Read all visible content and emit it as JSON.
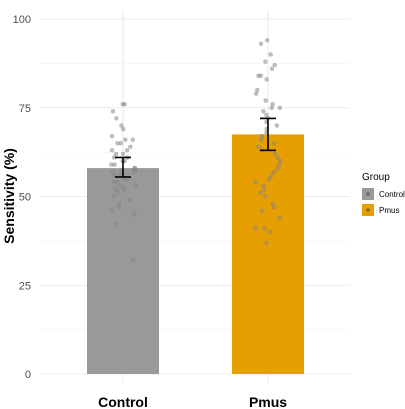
{
  "chart_data": {
    "type": "bar",
    "title": "",
    "xlabel": "",
    "ylabel": "Sensitivity (%)",
    "categories": [
      "Control",
      "Pmus"
    ],
    "values": [
      58,
      67.5
    ],
    "error_bars": [
      {
        "category": "Control",
        "low": 55.5,
        "high": 61
      },
      {
        "category": "Pmus",
        "low": 63,
        "high": 72
      }
    ],
    "ylim": [
      0,
      100
    ],
    "yticks": [
      0,
      25,
      50,
      75,
      100
    ],
    "grid": true,
    "legend": {
      "title": "Group",
      "placement": "right",
      "entries": [
        "Control",
        "Pmus"
      ]
    },
    "colors": {
      "Control": "#999999",
      "Pmus": "#E69F00"
    },
    "points": {
      "Control": [
        76,
        76,
        74,
        72,
        70,
        69,
        67,
        66,
        66,
        65,
        65,
        64,
        63,
        63,
        62,
        62,
        61,
        61,
        60,
        60,
        59,
        59,
        58,
        58,
        57,
        57,
        57,
        56,
        56,
        55,
        55,
        54,
        54,
        53,
        53,
        52,
        52,
        51,
        50,
        49,
        48,
        47,
        46,
        45,
        42,
        32
      ],
      "Pmus": [
        94,
        93,
        90,
        88,
        87,
        86,
        84,
        84,
        83,
        80,
        79,
        77,
        76,
        75,
        75,
        74,
        73,
        72,
        71,
        70,
        69,
        68,
        67,
        66,
        65,
        64,
        63,
        62,
        61,
        60,
        59,
        58,
        57,
        56,
        55,
        54,
        53,
        52,
        51,
        50,
        48,
        47,
        46,
        44,
        41,
        41,
        40,
        37
      ]
    }
  }
}
